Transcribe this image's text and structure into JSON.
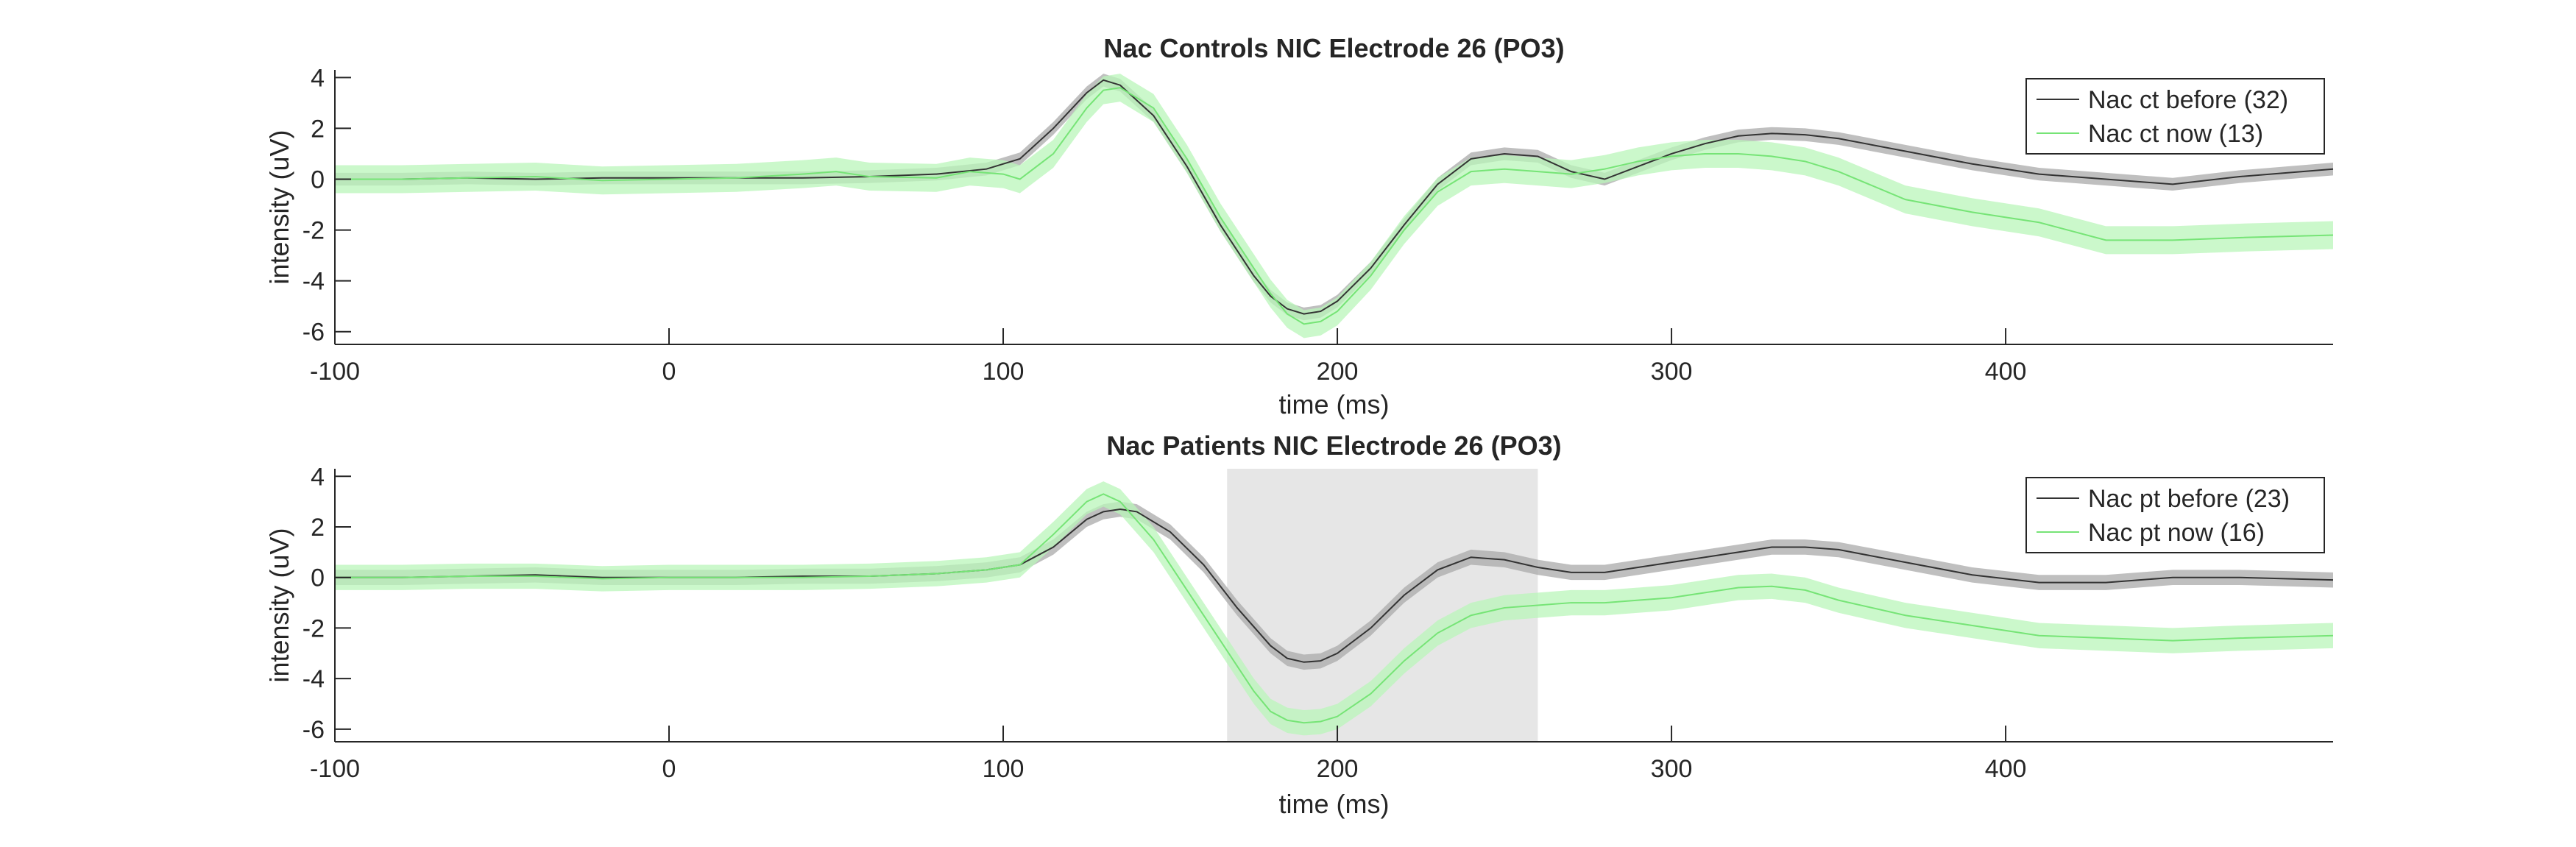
{
  "chart_data": [
    {
      "type": "line",
      "title": "Nac Controls NIC Electrode 26 (PO3)",
      "xlabel": "time (ms)",
      "ylabel": "intensity (uV)",
      "xlim": [
        -100,
        498
      ],
      "ylim": [
        -6.5,
        4.3
      ],
      "xticks": [
        -100,
        0,
        100,
        200,
        300,
        400
      ],
      "yticks": [
        -6,
        -4,
        -2,
        0,
        2,
        4
      ],
      "legend_position": "top-right",
      "highlight": null,
      "series": [
        {
          "name": "Nac ct before (32)",
          "color": "#333333",
          "band_color": "#a9a9a9",
          "band": 0.25,
          "x": [
            -100,
            -80,
            -60,
            -40,
            -20,
            0,
            20,
            40,
            60,
            80,
            95,
            105,
            115,
            125,
            130,
            135,
            145,
            155,
            165,
            175,
            180,
            185,
            190,
            195,
            200,
            210,
            220,
            230,
            240,
            250,
            260,
            270,
            280,
            290,
            300,
            310,
            320,
            330,
            340,
            350,
            370,
            390,
            410,
            430,
            450,
            470,
            498
          ],
          "y": [
            0,
            0,
            0.05,
            0,
            0.05,
            0.05,
            0.05,
            0.05,
            0.1,
            0.2,
            0.4,
            0.8,
            2.0,
            3.4,
            3.9,
            3.7,
            2.5,
            0.5,
            -1.8,
            -3.8,
            -4.6,
            -5.1,
            -5.3,
            -5.2,
            -4.8,
            -3.5,
            -1.8,
            -0.2,
            0.8,
            1.0,
            0.9,
            0.3,
            0,
            0.5,
            1.0,
            1.4,
            1.7,
            1.8,
            1.75,
            1.6,
            1.1,
            0.6,
            0.2,
            0,
            -0.2,
            0.1,
            0.4
          ]
        },
        {
          "name": "Nac ct now (13)",
          "color": "#76e476",
          "band_color": "#b9f5b9",
          "band": 0.55,
          "x": [
            -100,
            -80,
            -60,
            -40,
            -20,
            0,
            20,
            40,
            50,
            60,
            80,
            90,
            100,
            105,
            115,
            125,
            130,
            135,
            145,
            155,
            165,
            175,
            180,
            185,
            190,
            195,
            200,
            210,
            220,
            230,
            240,
            250,
            260,
            270,
            280,
            290,
            300,
            310,
            320,
            330,
            340,
            350,
            370,
            390,
            410,
            430,
            450,
            470,
            498
          ],
          "y": [
            0,
            0,
            0.05,
            0.1,
            -0.05,
            0,
            0.05,
            0.2,
            0.3,
            0.1,
            0.05,
            0.3,
            0.2,
            0,
            1.0,
            2.8,
            3.5,
            3.6,
            2.8,
            0.8,
            -1.5,
            -3.5,
            -4.5,
            -5.3,
            -5.7,
            -5.6,
            -5.2,
            -3.8,
            -2.0,
            -0.5,
            0.3,
            0.4,
            0.3,
            0.2,
            0.4,
            0.7,
            0.9,
            1.0,
            1.0,
            0.9,
            0.7,
            0.3,
            -0.8,
            -1.3,
            -1.7,
            -2.4,
            -2.4,
            -2.3,
            -2.2
          ]
        }
      ]
    },
    {
      "type": "line",
      "title": "Nac Patients NIC Electrode 26 (PO3)",
      "xlabel": "time (ms)",
      "ylabel": "intensity (uV)",
      "xlim": [
        -100,
        498
      ],
      "ylim": [
        -6.5,
        4.3
      ],
      "xticks": [
        -100,
        0,
        100,
        200,
        300,
        400
      ],
      "yticks": [
        -6,
        -4,
        -2,
        0,
        2,
        4
      ],
      "legend_position": "top-right",
      "highlight": {
        "x_from": 167,
        "x_to": 260,
        "color": "#e6e6e6"
      },
      "series": [
        {
          "name": "Nac pt before (23)",
          "color": "#333333",
          "band_color": "#a9a9a9",
          "band": 0.3,
          "x": [
            -100,
            -80,
            -60,
            -40,
            -20,
            0,
            20,
            40,
            60,
            80,
            95,
            105,
            115,
            125,
            130,
            135,
            140,
            150,
            160,
            170,
            180,
            185,
            190,
            195,
            200,
            210,
            220,
            230,
            240,
            250,
            260,
            270,
            280,
            290,
            300,
            310,
            320,
            330,
            340,
            350,
            370,
            390,
            410,
            430,
            450,
            470,
            498
          ],
          "y": [
            0,
            0,
            0.05,
            0.1,
            0,
            0,
            0,
            0.05,
            0.05,
            0.15,
            0.3,
            0.5,
            1.2,
            2.3,
            2.6,
            2.7,
            2.6,
            1.8,
            0.5,
            -1.2,
            -2.7,
            -3.2,
            -3.35,
            -3.3,
            -3.0,
            -2.0,
            -0.7,
            0.3,
            0.8,
            0.7,
            0.4,
            0.2,
            0.2,
            0.4,
            0.6,
            0.8,
            1.0,
            1.2,
            1.2,
            1.1,
            0.6,
            0.1,
            -0.2,
            -0.2,
            0,
            0,
            -0.1
          ]
        },
        {
          "name": "Nac pt now (16)",
          "color": "#76e476",
          "band_color": "#b9f5b9",
          "band": 0.5,
          "x": [
            -100,
            -80,
            -60,
            -40,
            -20,
            0,
            20,
            40,
            60,
            80,
            95,
            105,
            115,
            125,
            130,
            135,
            145,
            155,
            165,
            175,
            180,
            185,
            190,
            195,
            200,
            210,
            220,
            230,
            240,
            250,
            260,
            270,
            280,
            290,
            300,
            310,
            320,
            330,
            340,
            350,
            370,
            390,
            410,
            430,
            450,
            470,
            498
          ],
          "y": [
            0,
            0,
            0.05,
            0.05,
            -0.05,
            0,
            0,
            0,
            0.05,
            0.15,
            0.3,
            0.5,
            1.7,
            3.0,
            3.3,
            3.0,
            1.5,
            -0.5,
            -2.5,
            -4.5,
            -5.3,
            -5.65,
            -5.75,
            -5.7,
            -5.5,
            -4.6,
            -3.3,
            -2.2,
            -1.5,
            -1.2,
            -1.1,
            -1.0,
            -1.0,
            -0.9,
            -0.8,
            -0.6,
            -0.4,
            -0.35,
            -0.5,
            -0.9,
            -1.5,
            -1.9,
            -2.3,
            -2.4,
            -2.5,
            -2.4,
            -2.3
          ]
        }
      ]
    }
  ]
}
